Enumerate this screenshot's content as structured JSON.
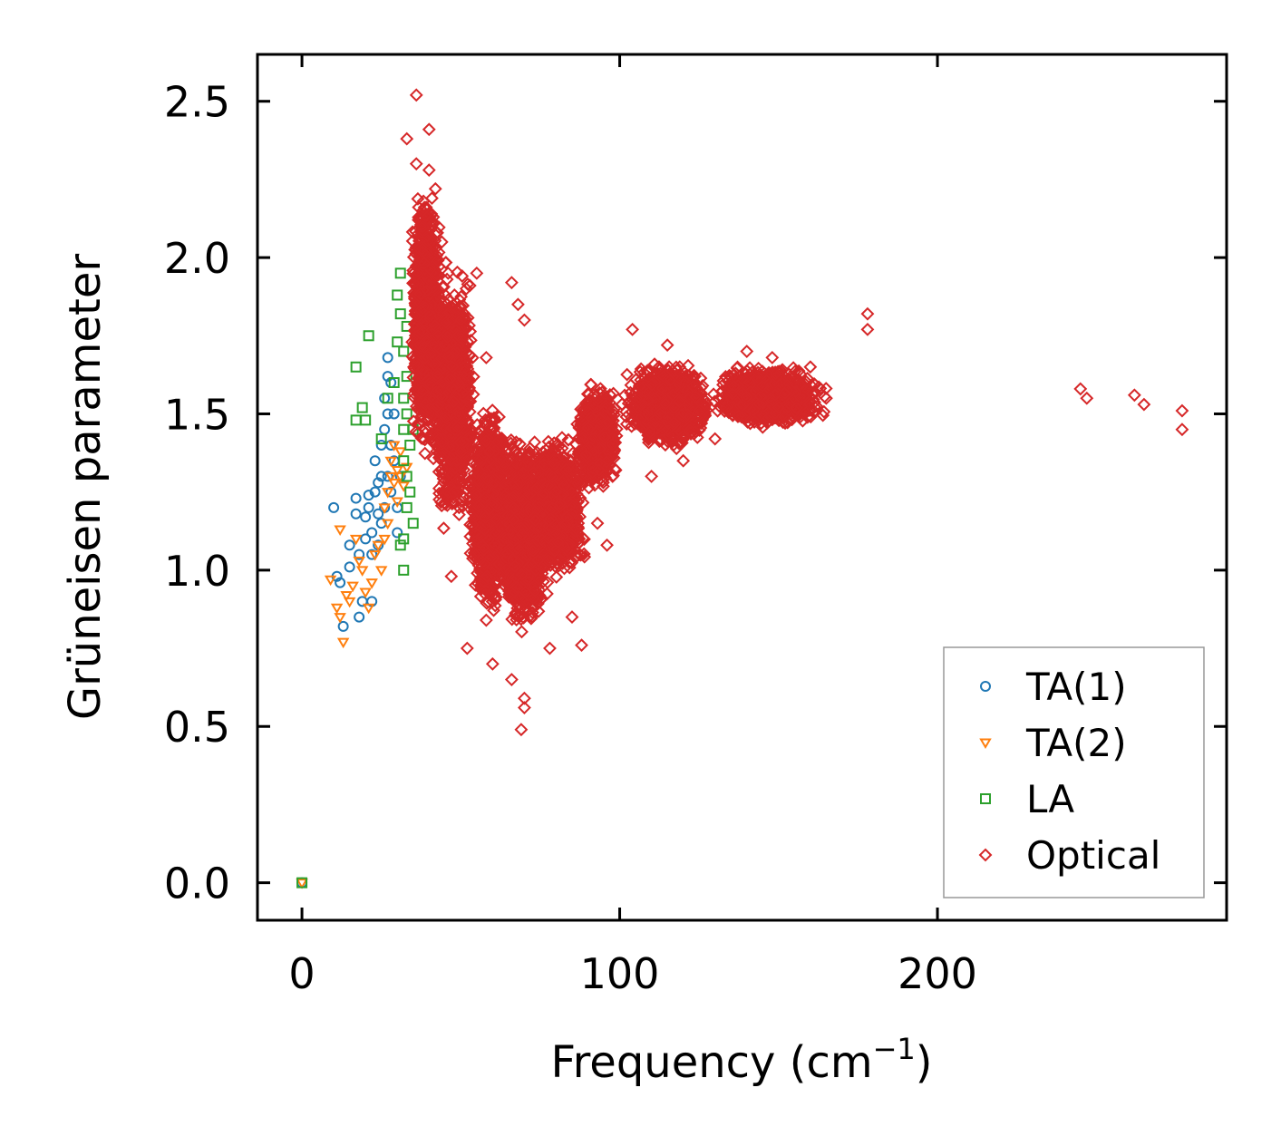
{
  "chart_data": {
    "type": "scatter",
    "title": "",
    "xlabel": "Frequency (cm",
    "xlabel_sup": "−1",
    "xlabel_close": ")",
    "ylabel": "Grüneisen parameter",
    "xlim": [
      -14,
      291
    ],
    "ylim": [
      -0.12,
      2.65
    ],
    "x_ticks": [
      0,
      100,
      200
    ],
    "y_ticks": [
      0.0,
      0.5,
      1.0,
      1.5,
      2.0,
      2.5
    ],
    "x_tick_labels": [
      "0",
      "100",
      "200"
    ],
    "y_tick_labels": [
      "0.0",
      "0.5",
      "1.0",
      "1.5",
      "2.0",
      "2.5"
    ],
    "grid": false,
    "legend_position": "lower-right",
    "series": [
      {
        "name": "TA(1)",
        "marker": "circle",
        "color": "#1f77b4",
        "points": [
          [
            0,
            0
          ],
          [
            10,
            1.2
          ],
          [
            11,
            0.98
          ],
          [
            12,
            0.96
          ],
          [
            13,
            0.82
          ],
          [
            15,
            1.01
          ],
          [
            15,
            1.08
          ],
          [
            17,
            1.18
          ],
          [
            17,
            1.23
          ],
          [
            18,
            0.85
          ],
          [
            18,
            1.05
          ],
          [
            19,
            0.9
          ],
          [
            20,
            1.1
          ],
          [
            20,
            1.17
          ],
          [
            21,
            1.2
          ],
          [
            21,
            1.24
          ],
          [
            22,
            1.05
          ],
          [
            22,
            1.12
          ],
          [
            22,
            0.9
          ],
          [
            23,
            1.25
          ],
          [
            23,
            1.35
          ],
          [
            24,
            1.18
          ],
          [
            24,
            1.28
          ],
          [
            24,
            1.08
          ],
          [
            25,
            1.3
          ],
          [
            25,
            1.4
          ],
          [
            25,
            1.15
          ],
          [
            26,
            1.45
          ],
          [
            26,
            1.2
          ],
          [
            26,
            1.55
          ],
          [
            27,
            1.62
          ],
          [
            27,
            1.68
          ],
          [
            27,
            1.3
          ],
          [
            27,
            1.5
          ],
          [
            28,
            1.25
          ],
          [
            28,
            1.4
          ],
          [
            28,
            1.6
          ],
          [
            29,
            1.35
          ],
          [
            29,
            1.5
          ],
          [
            30,
            1.12
          ],
          [
            30,
            1.2
          ],
          [
            31,
            1.3
          ]
        ]
      },
      {
        "name": "TA(2)",
        "marker": "triangle-down",
        "color": "#ff7f0e",
        "points": [
          [
            0,
            0
          ],
          [
            9,
            0.97
          ],
          [
            11,
            0.88
          ],
          [
            12,
            1.13
          ],
          [
            12,
            0.85
          ],
          [
            13,
            0.77
          ],
          [
            14,
            0.92
          ],
          [
            15,
            0.9
          ],
          [
            16,
            0.95
          ],
          [
            17,
            1.1
          ],
          [
            18,
            1.03
          ],
          [
            19,
            1.0
          ],
          [
            20,
            0.93
          ],
          [
            21,
            0.88
          ],
          [
            22,
            0.96
          ],
          [
            23,
            1.05
          ],
          [
            24,
            1.08
          ],
          [
            25,
            1.0
          ],
          [
            26,
            1.1
          ],
          [
            26,
            1.2
          ],
          [
            27,
            1.25
          ],
          [
            27,
            1.15
          ],
          [
            28,
            1.3
          ],
          [
            28,
            1.35
          ],
          [
            29,
            1.4
          ],
          [
            29,
            1.28
          ],
          [
            30,
            1.32
          ],
          [
            30,
            1.22
          ],
          [
            31,
            1.38
          ],
          [
            31,
            1.3
          ],
          [
            32,
            1.27
          ],
          [
            33,
            1.33
          ]
        ]
      },
      {
        "name": "LA",
        "marker": "square",
        "color": "#2ca02c",
        "points": [
          [
            0,
            0
          ],
          [
            17,
            1.65
          ],
          [
            17,
            1.48
          ],
          [
            19,
            1.52
          ],
          [
            21,
            1.75
          ],
          [
            20,
            1.48
          ],
          [
            25,
            1.42
          ],
          [
            27,
            1.55
          ],
          [
            29,
            1.6
          ],
          [
            30,
            1.73
          ],
          [
            30,
            1.88
          ],
          [
            31,
            1.95
          ],
          [
            31,
            1.82
          ],
          [
            32,
            1.7
          ],
          [
            32,
            1.55
          ],
          [
            32,
            1.45
          ],
          [
            32,
            1.35
          ],
          [
            33,
            1.78
          ],
          [
            33,
            1.62
          ],
          [
            33,
            1.5
          ],
          [
            33,
            1.3
          ],
          [
            33,
            1.2
          ],
          [
            32,
            1.1
          ],
          [
            31,
            1.08
          ],
          [
            32,
            1.0
          ],
          [
            34,
            1.4
          ],
          [
            34,
            1.25
          ],
          [
            35,
            1.15
          ],
          [
            35,
            1.45
          ]
        ]
      },
      {
        "name": "Optical",
        "marker": "diamond",
        "color": "#d62728",
        "points": [
          [
            36,
            2.52
          ],
          [
            40,
            2.41
          ],
          [
            33,
            2.38
          ],
          [
            36,
            2.3
          ],
          [
            40,
            2.28
          ],
          [
            42,
            2.22
          ],
          [
            38,
            2.15
          ],
          [
            44,
            2.05
          ],
          [
            46,
            1.95
          ],
          [
            48,
            1.88
          ],
          [
            55,
            1.95
          ],
          [
            50,
            1.8
          ],
          [
            66,
            1.92
          ],
          [
            68,
            1.85
          ],
          [
            70,
            1.8
          ],
          [
            58,
            1.68
          ],
          [
            104,
            1.77
          ],
          [
            115,
            1.72
          ],
          [
            140,
            1.7
          ],
          [
            148,
            1.68
          ],
          [
            160,
            1.65
          ],
          [
            178,
            1.82
          ],
          [
            178,
            1.77
          ],
          [
            245,
            1.58
          ],
          [
            247,
            1.55
          ],
          [
            262,
            1.56
          ],
          [
            265,
            1.53
          ],
          [
            277,
            1.51
          ],
          [
            277,
            1.45
          ],
          [
            52,
            0.75
          ],
          [
            60,
            0.7
          ],
          [
            66,
            0.65
          ],
          [
            70,
            0.56
          ],
          [
            70,
            0.59
          ],
          [
            69,
            0.49
          ],
          [
            78,
            0.75
          ],
          [
            88,
            0.76
          ],
          [
            96,
            1.08
          ],
          [
            93,
            1.15
          ],
          [
            85,
            0.85
          ],
          [
            47,
            0.98
          ],
          [
            58,
            0.84
          ],
          [
            110,
            1.3
          ],
          [
            120,
            1.35
          ],
          [
            130,
            1.42
          ],
          [
            150,
            1.52
          ],
          [
            165,
            1.55
          ]
        ],
        "bands": [
          {
            "x": [
              34,
              44
            ],
            "y": [
              1.35,
              2.25
            ],
            "n": 1400
          },
          {
            "x": [
              40,
              55
            ],
            "y": [
              1.1,
              2.0
            ],
            "n": 1400
          },
          {
            "x": [
              52,
              66
            ],
            "y": [
              0.85,
              1.55
            ],
            "n": 1500
          },
          {
            "x": [
              62,
              78
            ],
            "y": [
              0.78,
              1.45
            ],
            "n": 1600
          },
          {
            "x": [
              70,
              90
            ],
            "y": [
              0.95,
              1.45
            ],
            "n": 1400
          },
          {
            "x": [
              86,
              100
            ],
            "y": [
              1.25,
              1.6
            ],
            "n": 1100
          },
          {
            "x": [
              100,
              130
            ],
            "y": [
              1.38,
              1.68
            ],
            "n": 1300
          },
          {
            "x": [
              128,
              166
            ],
            "y": [
              1.45,
              1.66
            ],
            "n": 1300
          }
        ]
      }
    ]
  }
}
